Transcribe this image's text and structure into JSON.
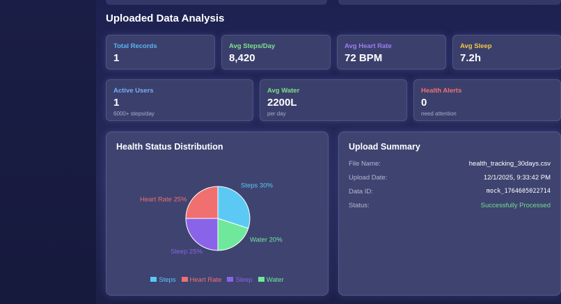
{
  "page_title": "Uploaded Data Analysis",
  "stats_row_1": [
    {
      "label": "Total Records",
      "value": "1",
      "color": "#5ab4f2"
    },
    {
      "label": "Avg Steps/Day",
      "value": "8,420",
      "color": "#7fe08c"
    },
    {
      "label": "Avg Heart Rate",
      "value": "72 BPM",
      "color": "#9b7ff0"
    },
    {
      "label": "Avg Sleep",
      "value": "7.2h",
      "color": "#f4c745"
    }
  ],
  "stats_row_2": [
    {
      "label": "Active Users",
      "value": "1",
      "note": "6000+ steps/day",
      "color": "#78aef2"
    },
    {
      "label": "Avg Water",
      "value": "2200L",
      "note": "per day",
      "color": "#7fe08c"
    },
    {
      "label": "Health Alerts",
      "value": "0",
      "note": "need attention",
      "color": "#f07272"
    }
  ],
  "chart_data": {
    "type": "pie",
    "title": "Health Status Distribution",
    "categories": [
      "Steps",
      "Heart Rate",
      "Sleep",
      "Water"
    ],
    "values": [
      30,
      25,
      25,
      20
    ],
    "value_labels": [
      "Steps 30%",
      "Heart Rate 25%",
      "Sleep 25%",
      "Water 20%"
    ],
    "colors": [
      "#5cc9f5",
      "#f07070",
      "#8a64e8",
      "#6fe89b"
    ],
    "legend": "bottom"
  },
  "upload_summary": {
    "title": "Upload Summary",
    "rows": [
      {
        "label": "File Name:",
        "value": "health_tracking_30days.csv"
      },
      {
        "label": "Upload Date:",
        "value": "12/1/2025, 9:33:42 PM"
      },
      {
        "label": "Data ID:",
        "value": "mock_1764605022714"
      },
      {
        "label": "Status:",
        "value": "Successfully Processed"
      }
    ]
  }
}
